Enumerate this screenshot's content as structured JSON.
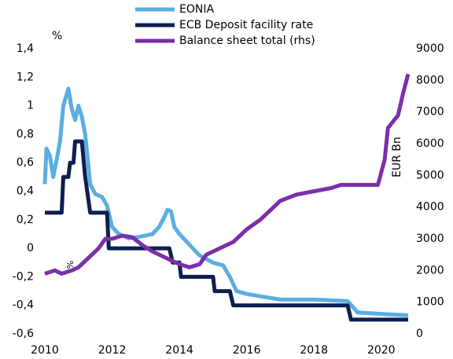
{
  "chart_data": {
    "type": "line",
    "y_label": "%",
    "y2_label": "EUR Bn",
    "annotation": "%",
    "xlim": [
      2010,
      2020.8
    ],
    "xticks": [
      2010,
      2012,
      2014,
      2016,
      2018,
      2020
    ],
    "ylim": [
      -0.6,
      1.4
    ],
    "yticks": [
      {
        "value": -0.6,
        "label": "-0,6"
      },
      {
        "value": -0.4,
        "label": "-0,4"
      },
      {
        "value": -0.2,
        "label": "-0,2"
      },
      0,
      {
        "value": 0.2,
        "label": "0,2"
      },
      {
        "value": 0.4,
        "label": "0,4"
      },
      {
        "value": 0.6,
        "label": "0,6"
      },
      {
        "value": 0.8,
        "label": "0,8"
      },
      1,
      {
        "value": 1.2,
        "label": "1,2"
      },
      {
        "value": 1.4,
        "label": "1,4"
      }
    ],
    "y2lim": [
      0,
      9000
    ],
    "y2ticks": [
      0,
      1000,
      2000,
      3000,
      4000,
      5000,
      6000,
      7000,
      8000,
      9000
    ],
    "series": [
      {
        "name": "EONIA",
        "color": "#5aaee0",
        "x": [
          2010.0,
          2010.05,
          2010.15,
          2010.25,
          2010.35,
          2010.45,
          2010.55,
          2010.7,
          2010.8,
          2010.9,
          2011.0,
          2011.1,
          2011.2,
          2011.35,
          2011.5,
          2011.7,
          2011.85,
          2012.0,
          2012.2,
          2012.5,
          2012.8,
          2013.0,
          2013.2,
          2013.4,
          2013.55,
          2013.65,
          2013.75,
          2013.85,
          2014.0,
          2014.2,
          2014.4,
          2014.6,
          2015.0,
          2015.3,
          2015.5,
          2015.7,
          2016.0,
          2016.5,
          2017.0,
          2018.0,
          2019.0,
          2019.3,
          2020.0,
          2020.8
        ],
        "values": [
          0.45,
          0.7,
          0.65,
          0.5,
          0.62,
          0.75,
          1.0,
          1.12,
          0.98,
          0.9,
          1.0,
          0.92,
          0.8,
          0.45,
          0.38,
          0.36,
          0.3,
          0.15,
          0.1,
          0.07,
          0.08,
          0.09,
          0.1,
          0.15,
          0.22,
          0.27,
          0.26,
          0.15,
          0.1,
          0.05,
          0.0,
          -0.05,
          -0.1,
          -0.12,
          -0.2,
          -0.3,
          -0.32,
          -0.34,
          -0.36,
          -0.36,
          -0.37,
          -0.45,
          -0.46,
          -0.47
        ]
      },
      {
        "name": "ECB Deposit facility rate",
        "color": "#0c1f4f",
        "x": [
          2010.0,
          2010.5,
          2010.55,
          2010.7,
          2010.75,
          2010.85,
          2010.9,
          2011.1,
          2011.2,
          2011.35,
          2011.85,
          2011.9,
          2013.7,
          2013.8,
          2014.0,
          2014.05,
          2015.0,
          2015.05,
          2015.5,
          2015.6,
          2019.0,
          2019.1,
          2020.8
        ],
        "values": [
          0.25,
          0.25,
          0.5,
          0.5,
          0.6,
          0.6,
          0.75,
          0.75,
          0.5,
          0.25,
          0.25,
          0.0,
          0.0,
          -0.1,
          -0.1,
          -0.2,
          -0.2,
          -0.3,
          -0.3,
          -0.4,
          -0.4,
          -0.5,
          -0.5
        ]
      },
      {
        "name": "Balance sheet total (rhs)",
        "color": "#7b2fa8",
        "axis": "y2",
        "x": [
          2010.0,
          2010.3,
          2010.5,
          2010.8,
          2011.0,
          2011.3,
          2011.6,
          2011.8,
          2012.0,
          2012.3,
          2012.6,
          2012.9,
          2013.2,
          2013.6,
          2014.0,
          2014.3,
          2014.6,
          2014.8,
          2015.2,
          2015.6,
          2016.0,
          2016.4,
          2016.8,
          2017.0,
          2017.5,
          2018.0,
          2018.5,
          2018.8,
          2019.5,
          2019.9,
          2020.1,
          2020.2,
          2020.5,
          2020.65,
          2020.8
        ],
        "values": [
          1900,
          2000,
          1900,
          2000,
          2100,
          2400,
          2700,
          3000,
          3000,
          3100,
          3050,
          2800,
          2600,
          2400,
          2200,
          2100,
          2200,
          2500,
          2700,
          2900,
          3300,
          3600,
          4000,
          4200,
          4400,
          4500,
          4600,
          4700,
          4700,
          4700,
          5500,
          6500,
          6900,
          7600,
          8200
        ]
      }
    ]
  }
}
